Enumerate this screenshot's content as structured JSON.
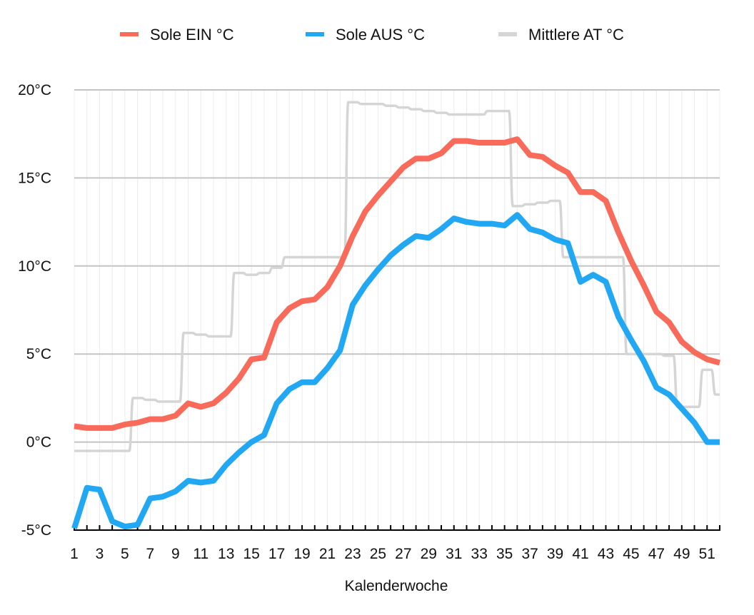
{
  "chart_data": {
    "type": "line",
    "title": "",
    "xlabel": "Kalenderwoche",
    "ylabel": "",
    "ylim": [
      -5,
      20
    ],
    "xlim": [
      1,
      52
    ],
    "y_ticks": [
      "-5°C",
      "0°C",
      "5°C",
      "10°C",
      "15°C",
      "20°C"
    ],
    "y_tick_values": [
      -5,
      0,
      5,
      10,
      15,
      20
    ],
    "x_ticks": [
      "1",
      "3",
      "5",
      "7",
      "9",
      "11",
      "13",
      "15",
      "17",
      "19",
      "21",
      "23",
      "25",
      "27",
      "29",
      "31",
      "33",
      "35",
      "37",
      "39",
      "41",
      "43",
      "45",
      "47",
      "49",
      "51"
    ],
    "x_tick_values": [
      1,
      3,
      5,
      7,
      9,
      11,
      13,
      15,
      17,
      19,
      21,
      23,
      25,
      27,
      29,
      31,
      33,
      35,
      37,
      39,
      41,
      43,
      45,
      47,
      49,
      51
    ],
    "grid": true,
    "legend_position": "top",
    "x": [
      1,
      2,
      3,
      4,
      5,
      6,
      7,
      8,
      9,
      10,
      11,
      12,
      13,
      14,
      15,
      16,
      17,
      18,
      19,
      20,
      21,
      22,
      23,
      24,
      25,
      26,
      27,
      28,
      29,
      30,
      31,
      32,
      33,
      34,
      35,
      36,
      37,
      38,
      39,
      40,
      41,
      42,
      43,
      44,
      45,
      46,
      47,
      48,
      49,
      50,
      51,
      52
    ],
    "series": [
      {
        "name": "Sole EIN °C",
        "color": "#F86A59",
        "style": "polyline",
        "values": [
          0.9,
          0.8,
          0.8,
          0.8,
          1.0,
          1.1,
          1.3,
          1.3,
          1.5,
          2.2,
          2.0,
          2.2,
          2.8,
          3.6,
          4.7,
          4.8,
          6.8,
          7.6,
          8.0,
          8.1,
          8.8,
          10.0,
          11.7,
          13.1,
          14.0,
          14.8,
          15.6,
          16.1,
          16.1,
          16.4,
          17.1,
          17.1,
          17.0,
          17.0,
          17.0,
          17.2,
          16.3,
          16.2,
          15.7,
          15.3,
          14.2,
          14.2,
          13.7,
          11.9,
          10.3,
          8.9,
          7.4,
          6.8,
          5.7,
          5.1,
          4.7,
          4.5
        ]
      },
      {
        "name": "Sole AUS °C",
        "color": "#22A8F3",
        "style": "polyline",
        "values": [
          -4.9,
          -2.6,
          -2.7,
          -4.5,
          -4.8,
          -4.7,
          -3.2,
          -3.1,
          -2.8,
          -2.2,
          -2.3,
          -2.2,
          -1.3,
          -0.6,
          0.0,
          0.4,
          2.2,
          3.0,
          3.4,
          3.4,
          4.2,
          5.2,
          7.8,
          8.9,
          9.8,
          10.6,
          11.2,
          11.7,
          11.6,
          12.1,
          12.7,
          12.5,
          12.4,
          12.4,
          12.3,
          12.9,
          12.1,
          11.9,
          11.5,
          11.3,
          9.1,
          9.5,
          9.1,
          7.1,
          5.8,
          4.6,
          3.1,
          2.7,
          1.9,
          1.1,
          0.0,
          0.0
        ]
      },
      {
        "name": "Mittlere AT °C",
        "color": "#D5D5D5",
        "style": "step",
        "values": [
          -0.5,
          -0.5,
          -0.5,
          -0.5,
          -0.5,
          2.5,
          2.4,
          2.3,
          2.3,
          6.2,
          6.1,
          6.0,
          6.0,
          9.6,
          9.5,
          9.6,
          9.9,
          10.5,
          10.5,
          10.5,
          10.5,
          10.5,
          19.3,
          19.2,
          19.2,
          19.1,
          19.0,
          18.9,
          18.8,
          18.7,
          18.6,
          18.6,
          18.6,
          18.8,
          18.8,
          13.4,
          13.5,
          13.6,
          13.7,
          10.5,
          10.5,
          10.5,
          10.5,
          10.5,
          5.0,
          5.0,
          5.0,
          4.9,
          2.0,
          2.0,
          4.1,
          2.7
        ]
      }
    ]
  }
}
